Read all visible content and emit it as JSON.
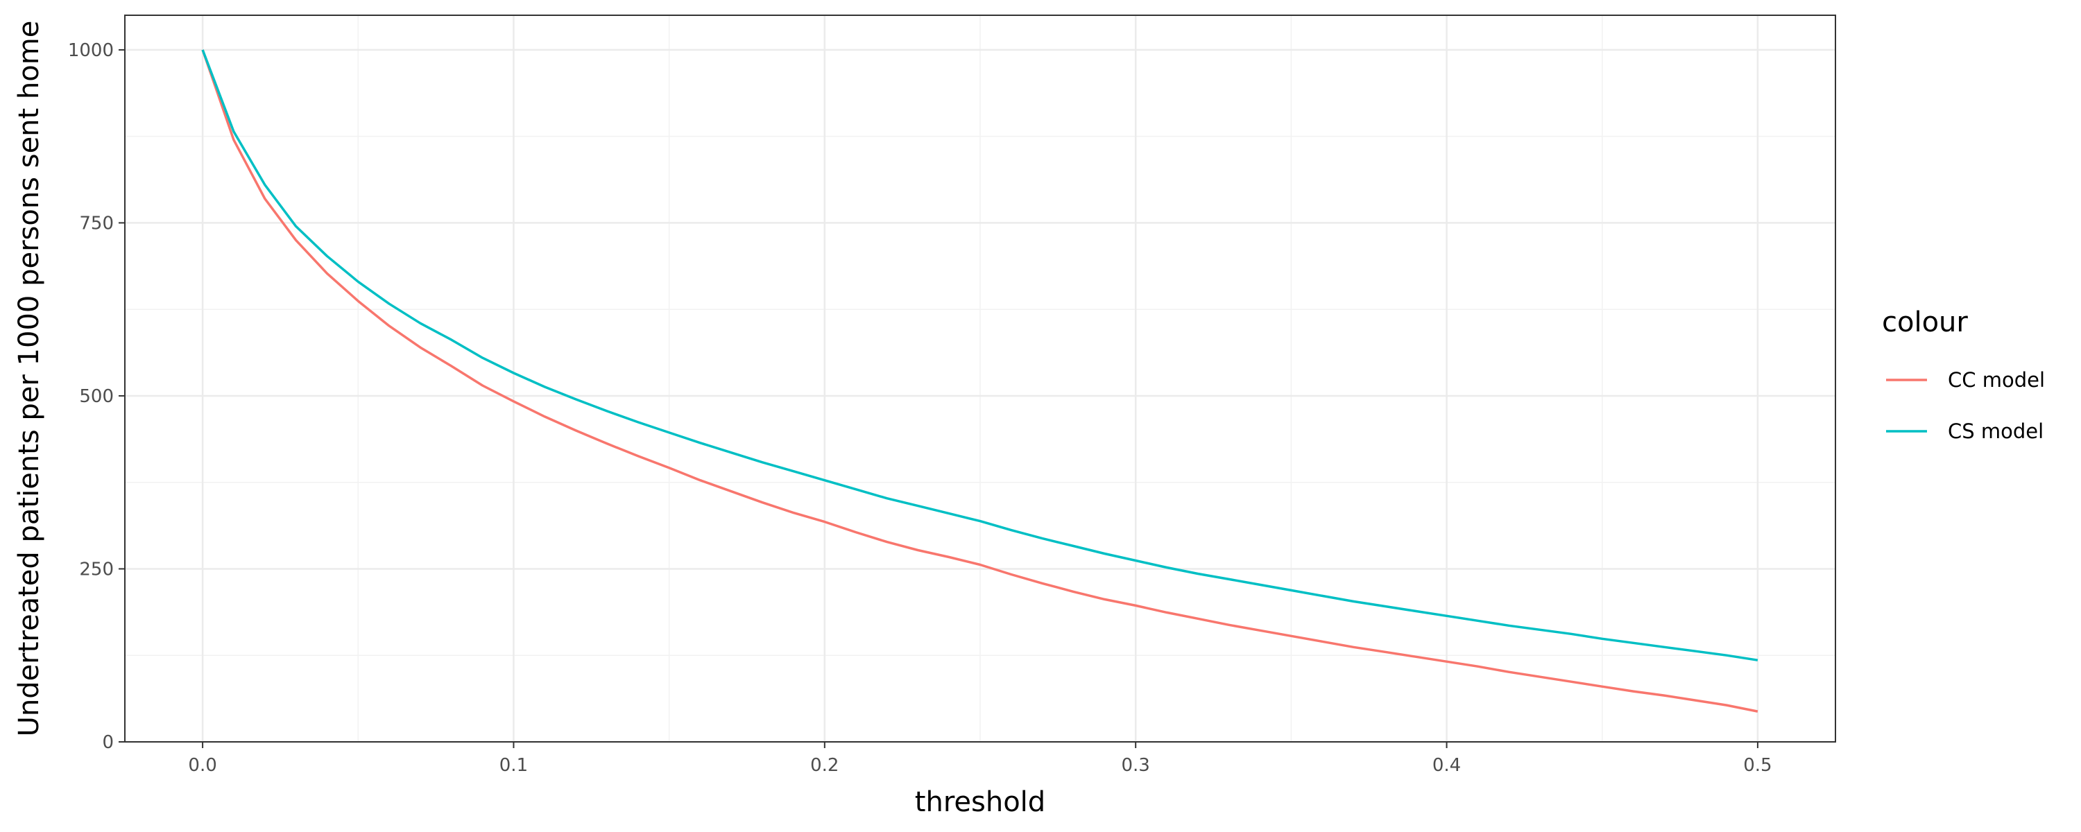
{
  "chart_data": {
    "type": "line",
    "xlabel": "threshold",
    "ylabel": "Undertreated patients per 1000 persons sent home",
    "xlim": [
      -0.025,
      0.525
    ],
    "ylim": [
      0,
      1050
    ],
    "x_ticks": [
      0.0,
      0.1,
      0.2,
      0.3,
      0.4,
      0.5
    ],
    "x_tick_labels": [
      "0.0",
      "0.1",
      "0.2",
      "0.3",
      "0.4",
      "0.5"
    ],
    "y_ticks": [
      0,
      250,
      500,
      750,
      1000
    ],
    "y_tick_labels": [
      "0",
      "250",
      "500",
      "750",
      "1000"
    ],
    "grid": true,
    "legend": {
      "title": "colour",
      "position": "right",
      "entries": [
        {
          "label": "CC model",
          "color": "#F8766D"
        },
        {
          "label": "CS model",
          "color": "#00BFC4"
        }
      ]
    },
    "x": [
      0.0,
      0.01,
      0.02,
      0.03,
      0.04,
      0.05,
      0.06,
      0.07,
      0.08,
      0.09,
      0.1,
      0.11,
      0.12,
      0.13,
      0.14,
      0.15,
      0.16,
      0.17,
      0.18,
      0.19,
      0.2,
      0.21,
      0.22,
      0.23,
      0.24,
      0.25,
      0.26,
      0.27,
      0.28,
      0.29,
      0.3,
      0.31,
      0.32,
      0.33,
      0.34,
      0.35,
      0.36,
      0.37,
      0.38,
      0.39,
      0.4,
      0.41,
      0.42,
      0.43,
      0.44,
      0.45,
      0.46,
      0.47,
      0.48,
      0.49,
      0.5
    ],
    "series": [
      {
        "name": "CC model",
        "color": "#F8766D",
        "values": [
          1000,
          870,
          785,
          725,
          677,
          637,
          601,
          570,
          543,
          515,
          492,
          470,
          450,
          431,
          413,
          396,
          378,
          362,
          346,
          331,
          318,
          303,
          289,
          277,
          267,
          256,
          242,
          229,
          217,
          206,
          197,
          187,
          178,
          169,
          161,
          153,
          145,
          137,
          130,
          123,
          116,
          109,
          101,
          94,
          87,
          80,
          73,
          67,
          60,
          53,
          44
        ]
      },
      {
        "name": "CS model",
        "color": "#00BFC4",
        "values": [
          1000,
          882,
          805,
          745,
          702,
          665,
          633,
          605,
          581,
          555,
          533,
          513,
          495,
          478,
          462,
          447,
          432,
          418,
          404,
          391,
          378,
          365,
          352,
          341,
          330,
          319,
          306,
          294,
          283,
          272,
          262,
          252,
          243,
          235,
          227,
          219,
          211,
          203,
          196,
          189,
          182,
          175,
          168,
          162,
          156,
          149,
          143,
          137,
          131,
          125,
          118
        ]
      }
    ]
  }
}
